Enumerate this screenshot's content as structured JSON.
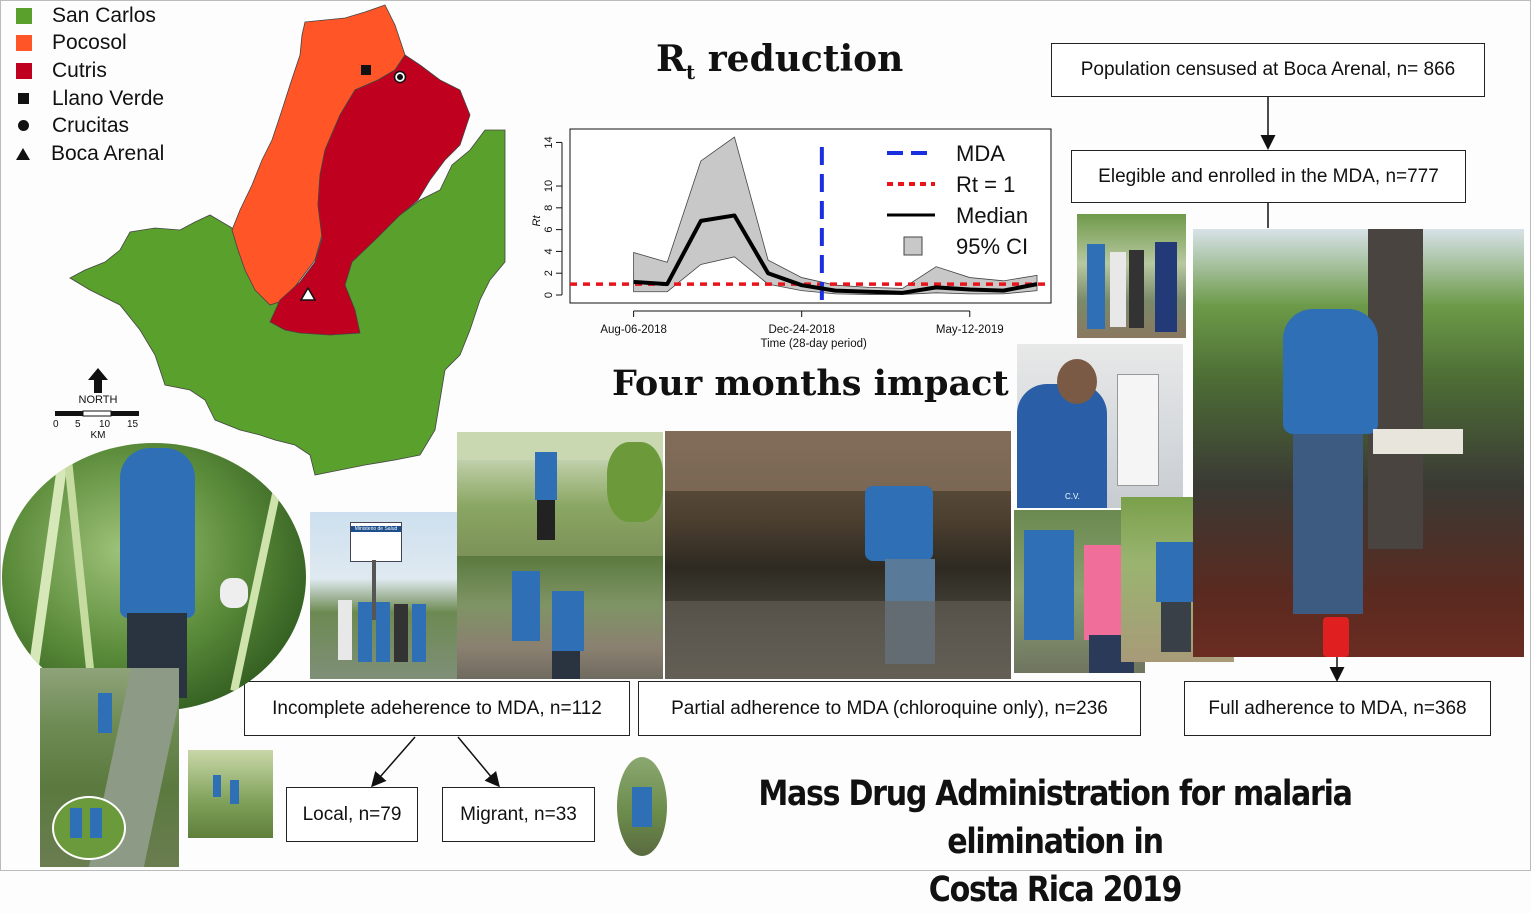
{
  "map": {
    "legend": [
      {
        "label": "San Carlos",
        "symbol": "square",
        "color": "#5aa02c"
      },
      {
        "label": "Pocosol",
        "symbol": "square",
        "color": "#ff5527"
      },
      {
        "label": "Cutris",
        "symbol": "square",
        "color": "#c0001f"
      },
      {
        "label": "Llano Verde",
        "symbol": "filled-square-icon",
        "color": "#111111"
      },
      {
        "label": "Crucitas",
        "symbol": "filled-circle-icon",
        "color": "#111111"
      },
      {
        "label": "Boca Arenal",
        "symbol": "filled-triangle-icon",
        "color": "#111111"
      }
    ],
    "north_label": "NORTH",
    "scale_ticks": [
      "0",
      "5",
      "10",
      "15"
    ],
    "scale_unit": "KM"
  },
  "headings": {
    "rt_main": "R",
    "rt_sub": "t",
    "rt_rest": " reduction",
    "impact": "Four months impact",
    "main_title_line1": "Mass Drug Administration for malaria elimination in",
    "main_title_line2": "Costa Rica 2019"
  },
  "flow": {
    "census": "Population censused at Boca Arenal, n= 866",
    "enrolled": "Elegible and enrolled in the MDA, n=777",
    "incomplete": "Incomplete adeherence to MDA, n=112",
    "partial": "Partial adherence to MDA (chloroquine only), n=236",
    "full": "Full adherence to MDA, n=368",
    "local": "Local, n=79",
    "migrant": "Migrant, n=33"
  },
  "photos": {
    "sign_caption": "Ministerio de Salud",
    "shirt_initials": "C.V."
  },
  "chart_data": {
    "type": "line",
    "title": "",
    "xlabel": "Time (28-day period)",
    "ylabel": "Rt",
    "x_tick_labels": [
      "Aug-06-2018",
      "Dec-24-2018",
      "May-12-2019"
    ],
    "x_tick_positions": [
      1,
      6,
      11
    ],
    "y_ticks": [
      0,
      2,
      4,
      6,
      8,
      10,
      14
    ],
    "ylim": [
      0,
      14.5
    ],
    "xlim": [
      0,
      13
    ],
    "legend_position": "top-right",
    "legend": [
      {
        "label": "MDA",
        "style": "blue-dash",
        "color": "#1a2fe0"
      },
      {
        "label": "Rt = 1",
        "style": "red-dot",
        "color": "#e8141b"
      },
      {
        "label": "Median",
        "style": "black-line",
        "color": "#000000"
      },
      {
        "label": "95% CI",
        "style": "gray-box",
        "color": "#c8c8c8"
      }
    ],
    "mda_x": 6.6,
    "threshold_y": 1,
    "series": [
      {
        "name": "Median",
        "x": [
          1,
          2,
          3,
          4,
          5,
          6,
          7,
          8,
          9,
          10,
          11,
          12,
          13
        ],
        "values": [
          1.2,
          1.0,
          6.8,
          7.3,
          2.0,
          0.9,
          0.4,
          0.3,
          0.2,
          0.7,
          0.5,
          0.4,
          1.0
        ]
      },
      {
        "name": "95% CI upper",
        "x": [
          1,
          2,
          3,
          4,
          5,
          6,
          7,
          8,
          9,
          10,
          11,
          12,
          13
        ],
        "values": [
          3.9,
          3.0,
          12.3,
          14.5,
          3.2,
          1.6,
          0.9,
          0.7,
          0.6,
          2.6,
          1.6,
          1.3,
          1.8
        ]
      },
      {
        "name": "95% CI lower",
        "x": [
          1,
          2,
          3,
          4,
          5,
          6,
          7,
          8,
          9,
          10,
          11,
          12,
          13
        ],
        "values": [
          0.3,
          0.3,
          2.8,
          3.5,
          1.0,
          0.4,
          0.1,
          0.05,
          0.05,
          0.2,
          0.1,
          0.1,
          0.4
        ]
      }
    ]
  }
}
